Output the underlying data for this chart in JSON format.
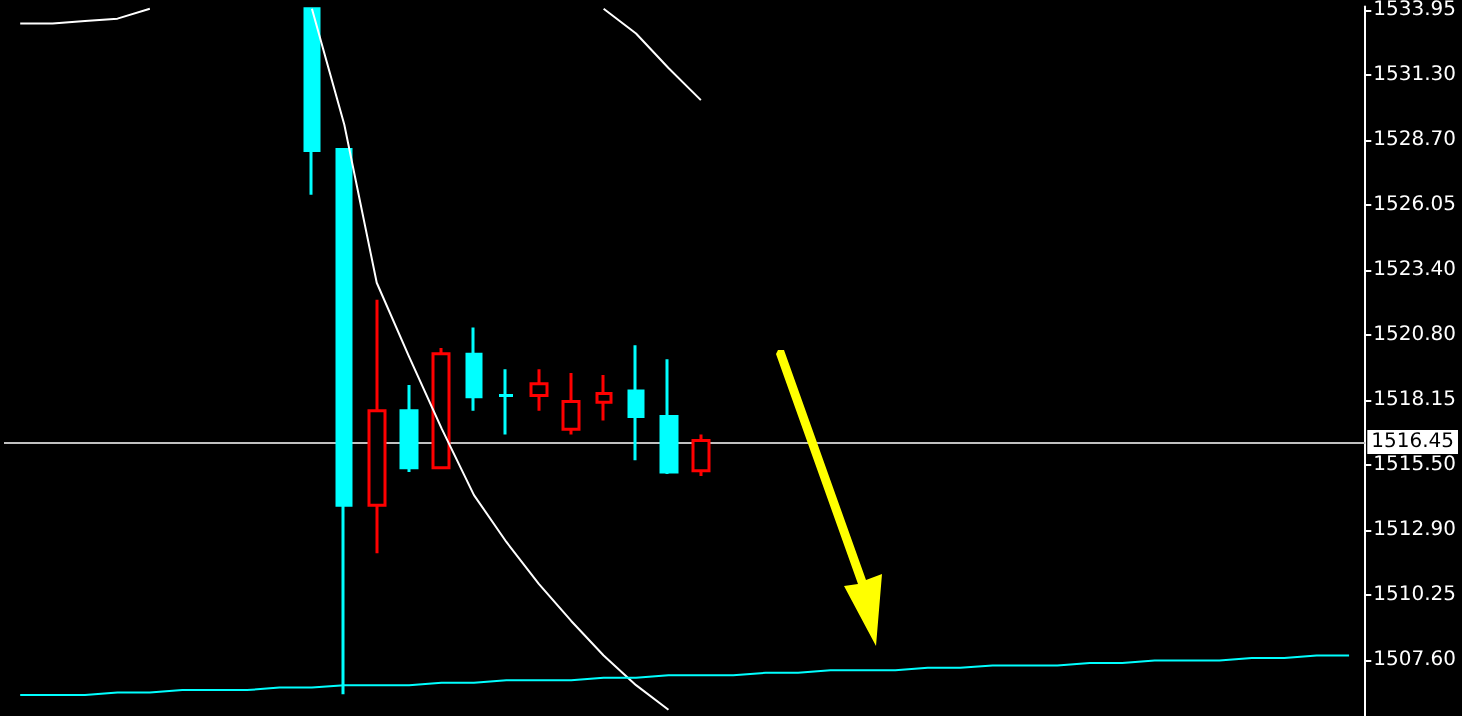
{
  "chart_data": {
    "type": "candlestick",
    "categories": [
      null,
      null,
      null,
      null,
      null,
      null,
      null,
      null,
      null,
      null,
      null,
      null,
      null,
      null,
      null,
      null,
      null,
      null,
      null,
      null,
      null,
      null,
      null,
      null,
      null,
      null,
      null,
      null,
      null,
      null,
      null,
      null,
      null,
      null,
      null,
      null,
      null,
      null,
      null,
      null,
      null,
      null
    ],
    "series": [
      {
        "type": "line",
        "color": "#ffffff",
        "values": [
          1533.4,
          1533.4,
          1533.5,
          1533.6,
          1534.0,
          null,
          null,
          null,
          null,
          null,
          null,
          null,
          null,
          null,
          null,
          null,
          null,
          null,
          null,
          null,
          null,
          null,
          null,
          null,
          null,
          null,
          null,
          null,
          null,
          null,
          null,
          null,
          null,
          null,
          null,
          null,
          null,
          null,
          null,
          null,
          null,
          null
        ]
      },
      {
        "type": "line",
        "color": "#ffffff",
        "values": [
          null,
          null,
          null,
          null,
          null,
          null,
          null,
          null,
          null,
          1534.0,
          1529.3,
          1522.9,
          1519.9,
          1517.0,
          1514.3,
          1512.4,
          1510.7,
          1509.2,
          1507.8,
          1506.6,
          1505.6,
          null,
          null,
          null,
          null,
          null,
          null,
          null,
          null,
          null,
          null,
          null,
          null,
          null,
          null,
          null,
          null,
          null,
          null,
          null,
          null,
          null
        ]
      },
      {
        "type": "line",
        "color": "#ffffff",
        "values": [
          null,
          null,
          null,
          null,
          null,
          null,
          null,
          null,
          null,
          null,
          null,
          null,
          null,
          null,
          null,
          null,
          null,
          null,
          1534.0,
          1533.0,
          1531.6,
          1530.3,
          null,
          null,
          null,
          null,
          null,
          null,
          null,
          null,
          null,
          null,
          null,
          null,
          null,
          null,
          null,
          null,
          null,
          null,
          null,
          null
        ]
      },
      {
        "type": "line",
        "color": "#00ffff",
        "values": [
          1506.2,
          1506.2,
          1506.2,
          1506.3,
          1506.3,
          1506.4,
          1506.4,
          1506.4,
          1506.5,
          1506.5,
          1506.6,
          1506.6,
          1506.6,
          1506.7,
          1506.7,
          1506.8,
          1506.8,
          1506.8,
          1506.9,
          1506.9,
          1507.0,
          1507.0,
          1507.0,
          1507.1,
          1507.1,
          1507.2,
          1507.2,
          1507.2,
          1507.3,
          1507.3,
          1507.4,
          1507.4,
          1507.4,
          1507.5,
          1507.5,
          1507.6,
          1507.6,
          1507.6,
          1507.7,
          1507.7,
          1507.8,
          1507.8
        ]
      },
      {
        "ohlc": [
          null,
          null,
          null,
          null,
          null,
          null,
          null,
          null,
          null,
          [
            1534.0,
            1534.0,
            1526.47,
            1528.26
          ],
          [
            1528.3,
            1528.3,
            1506.23,
            1513.89
          ],
          [
            1513.89,
            1522.21,
            1511.94,
            1517.72
          ],
          [
            1517.72,
            1518.76,
            1515.23,
            1515.41
          ],
          [
            1515.41,
            1520.26,
            1515.41,
            1520.02
          ],
          [
            1520.0,
            1521.09,
            1517.72,
            1518.28
          ],
          [
            1518.33,
            1519.4,
            1516.75,
            1518.33
          ],
          [
            1518.33,
            1519.4,
            1517.72,
            1518.81
          ],
          [
            1516.97,
            1519.24,
            1516.75,
            1518.09
          ],
          [
            1518.06,
            1519.16,
            1517.32,
            1518.41
          ],
          [
            1518.52,
            1520.37,
            1515.71,
            1517.48
          ],
          [
            1517.48,
            1519.8,
            1515.15,
            1515.23
          ],
          [
            1515.28,
            1516.75,
            1515.07,
            1516.51
          ],
          null,
          null,
          null,
          null,
          null,
          null,
          null,
          null,
          null,
          null,
          null,
          null,
          null,
          null,
          null,
          null,
          null,
          null,
          null,
          null
        ],
        "colors": [
          null,
          null,
          null,
          null,
          null,
          null,
          null,
          null,
          null,
          "#00ffff",
          "#00ffff",
          "#ff0000",
          "#00ffff",
          "#ff0000",
          "#00ffff",
          "#00ffff",
          "#ff0000",
          "#ff0000",
          "#ff0000",
          "#00ffff",
          "#00ffff",
          "#ff0000",
          null,
          null,
          null,
          null,
          null,
          null,
          null,
          null,
          null,
          null,
          null,
          null,
          null,
          null,
          null,
          null,
          null,
          null,
          null,
          null
        ]
      }
    ],
    "ylim": [
      1505.35,
      1534.09
    ],
    "yticks": [
      {
        "value": 1507.6,
        "label": "1507.60"
      },
      {
        "value": 1510.25,
        "label": "1510.25"
      },
      {
        "value": 1512.9,
        "label": "1512.90"
      },
      {
        "value": 1515.5,
        "label": "1515.50"
      },
      {
        "value": 1518.15,
        "label": "1518.15"
      },
      {
        "value": 1520.8,
        "label": "1520.80"
      },
      {
        "value": 1523.4,
        "label": "1523.40"
      },
      {
        "value": 1526.05,
        "label": "1526.05"
      },
      {
        "value": 1528.7,
        "label": "1528.70"
      },
      {
        "value": 1531.3,
        "label": "1531.30"
      },
      {
        "value": 1533.95,
        "label": "1533.95"
      }
    ],
    "ref_lines": [
      {
        "axis": "y",
        "value": 1516.45,
        "label": "1516.45",
        "color": "#c0c0c0"
      }
    ],
    "tick_labels": "y"
  }
}
